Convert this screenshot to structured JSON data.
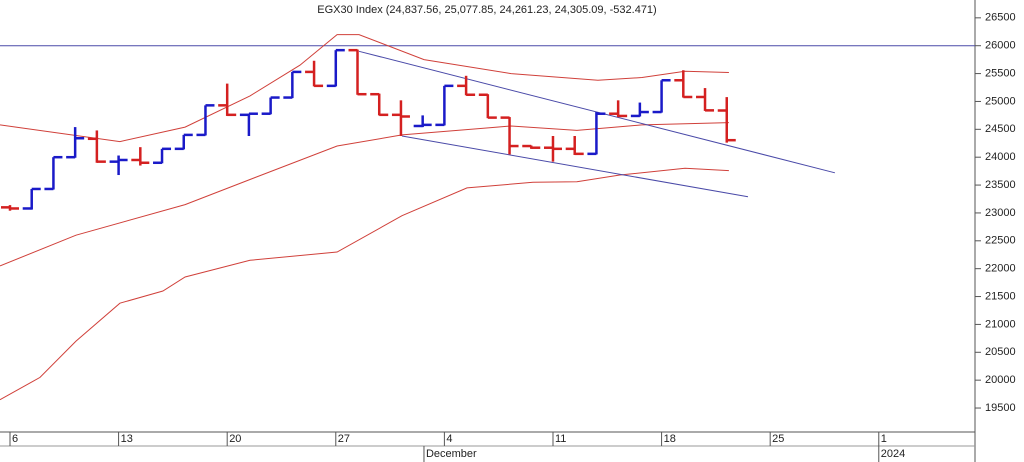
{
  "chart_data": {
    "type": "ohlc",
    "title": "EGX30 Index (24,837.56, 25,077.85, 24,261.23, 24,305.09, -532.471)",
    "x": [
      0,
      1,
      2,
      3,
      4,
      5,
      6,
      7,
      8,
      9,
      10,
      11,
      12,
      13,
      14,
      15,
      16,
      17,
      18,
      19,
      20,
      21,
      22,
      23,
      24,
      25,
      26,
      27,
      28,
      29,
      30,
      31,
      32,
      33
    ],
    "open": [
      23100,
      23080,
      23430,
      24000,
      24330,
      23920,
      23950,
      23900,
      24150,
      24400,
      24930,
      24760,
      24780,
      25070,
      25530,
      25280,
      25920,
      25130,
      24760,
      24560,
      24580,
      25280,
      25120,
      24710,
      24200,
      24170,
      24150,
      24060,
      24780,
      24740,
      24810,
      25380,
      25080,
      24837.56
    ],
    "high": [
      23140,
      23430,
      24000,
      24540,
      24480,
      24030,
      24180,
      24150,
      24400,
      24930,
      25320,
      24780,
      25070,
      25530,
      25730,
      25920,
      25930,
      25140,
      25020,
      24750,
      25280,
      25460,
      25130,
      24720,
      24210,
      24380,
      24380,
      24810,
      25020,
      24980,
      25380,
      25560,
      25240,
      25077.85
    ],
    "low": [
      23040,
      23060,
      23420,
      23990,
      23900,
      23680,
      23850,
      23890,
      24140,
      24390,
      24740,
      24380,
      24770,
      25060,
      25270,
      25270,
      25120,
      24750,
      24380,
      24540,
      24570,
      25110,
      24700,
      24050,
      24150,
      23920,
      24040,
      24050,
      24720,
      24730,
      24800,
      25070,
      24830,
      24261.23
    ],
    "close": [
      23080,
      23430,
      24000,
      24340,
      23920,
      23950,
      23900,
      24150,
      24400,
      24930,
      24760,
      24780,
      25070,
      25530,
      25280,
      25920,
      25130,
      24760,
      24730,
      24580,
      25280,
      25120,
      24710,
      24200,
      24170,
      24150,
      24060,
      24780,
      24740,
      24810,
      25380,
      25080,
      24840,
      24305.09
    ],
    "up_color": "#1a1ac8",
    "down_color": "#d42020",
    "bands": [
      {
        "color": "#d0403a",
        "x": [
          -0.46,
          5.06,
          8.06,
          11.05,
          13.35,
          15.06,
          16.07,
          19.06,
          23.07,
          27.07,
          29.1,
          31.08,
          33.1
        ],
        "values": [
          24580,
          24280,
          24540,
          25100,
          25650,
          26200,
          26200,
          25750,
          25500,
          25380,
          25430,
          25540,
          25520
        ]
      },
      {
        "color": "#d0403a",
        "x": [
          -0.46,
          3.04,
          8.06,
          11.05,
          15.06,
          18.05,
          23.07,
          26.1,
          29.1,
          33.1
        ],
        "values": [
          22050,
          22600,
          23150,
          23600,
          24200,
          24400,
          24560,
          24480,
          24580,
          24620
        ]
      },
      {
        "color": "#d0403a",
        "x": [
          -0.46,
          1.38,
          3.04,
          5.06,
          7.04,
          8.06,
          11.05,
          15.06,
          18.05,
          21.04,
          24.08,
          26.1,
          28.08,
          31.08,
          33.1
        ],
        "values": [
          19650,
          20050,
          20700,
          21380,
          21600,
          21850,
          22150,
          22300,
          22950,
          23450,
          23550,
          23560,
          23680,
          23800,
          23760
        ]
      }
    ],
    "trend_lines": [
      {
        "color": "#4a4aa8",
        "x": [
          16.07,
          37.98
        ],
        "values": [
          25900,
          23720
        ]
      },
      {
        "color": "#4a4aa8",
        "x": [
          18.05,
          33.98
        ],
        "values": [
          24380,
          23290
        ]
      }
    ],
    "hline": 26000,
    "hline_color": "#4a4aa8",
    "xlim": [
      -0.46,
      44.43
    ],
    "xticks": [
      {
        "value": 0,
        "label": "6"
      },
      {
        "value": 5,
        "label": "13"
      },
      {
        "value": 10,
        "label": "20"
      },
      {
        "value": 15,
        "label": "27"
      },
      {
        "value": 20,
        "label": "4"
      },
      {
        "value": 25,
        "label": "11"
      },
      {
        "value": 30,
        "label": "18"
      },
      {
        "value": 35,
        "label": "25"
      },
      {
        "value": 40,
        "label": "1"
      }
    ],
    "month_labels": [
      {
        "value": 19.06,
        "label": "December"
      },
      {
        "value": 40,
        "label": "2024"
      }
    ],
    "ylim": [
      19070,
      26820
    ],
    "yticks": [
      19500,
      20000,
      20500,
      21000,
      21500,
      22000,
      22500,
      23000,
      23500,
      24000,
      24500,
      25000,
      25500,
      26000,
      26500
    ]
  }
}
